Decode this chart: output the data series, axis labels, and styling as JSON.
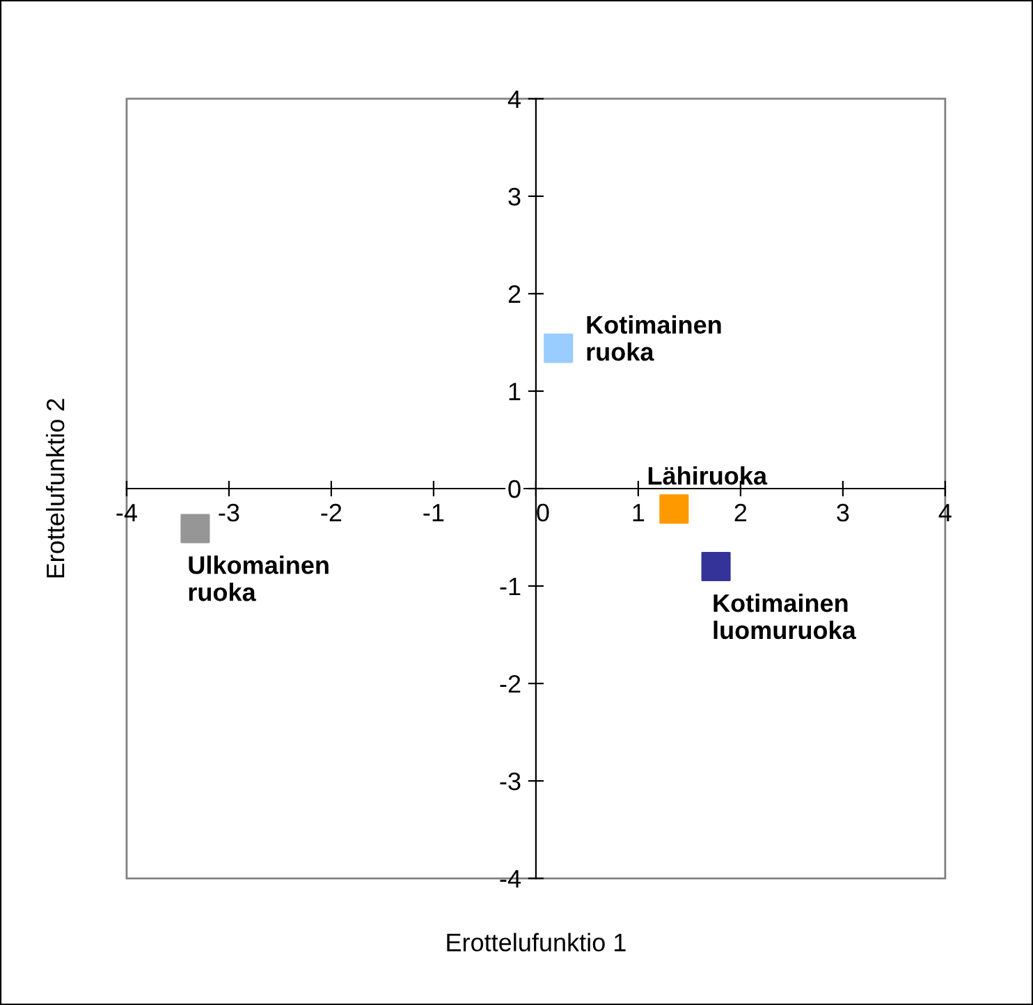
{
  "chart_data": {
    "type": "scatter",
    "xlabel": "Erottelufunktio 1",
    "ylabel": "Erottelufunktio 2",
    "xlim": [
      -4,
      4
    ],
    "ylim": [
      -4,
      4
    ],
    "xticks": [
      -4,
      -3,
      -2,
      -1,
      0,
      1,
      2,
      3,
      4
    ],
    "yticks": [
      -4,
      -3,
      -2,
      -1,
      0,
      1,
      2,
      3,
      4
    ],
    "grid": false,
    "legend": false,
    "marker": "square",
    "series": [
      {
        "name": "Kotimainen ruoka",
        "color": "#99ccff",
        "x": [
          0.22
        ],
        "values": [
          1.44
        ]
      },
      {
        "name": "Lähiruoka",
        "color": "#ff9900",
        "x": [
          1.35
        ],
        "values": [
          -0.21
        ]
      },
      {
        "name": "Kotimainen luomuruoka",
        "color": "#333399",
        "x": [
          1.76
        ],
        "values": [
          -0.8
        ]
      },
      {
        "name": "Ulkomainen ruoka",
        "color": "#969696",
        "x": [
          -3.33
        ],
        "values": [
          -0.41
        ]
      }
    ]
  }
}
